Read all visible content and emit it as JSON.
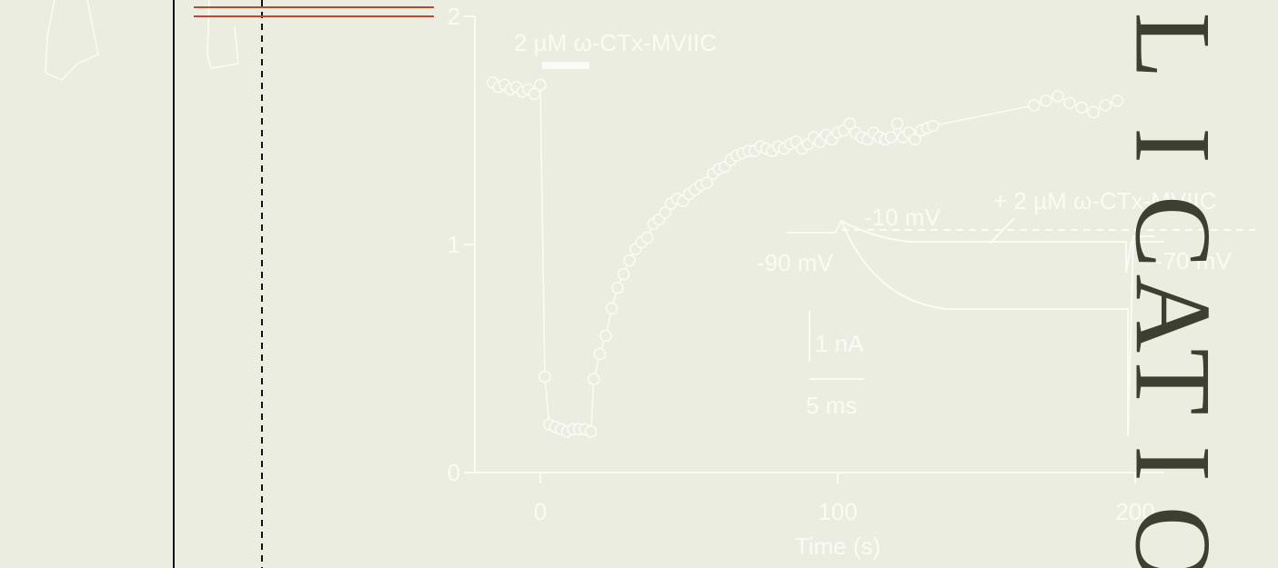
{
  "chart_data": {
    "type": "line",
    "xlabel": "Time (s)",
    "color": "#fbfbf6",
    "marker": "circle",
    "x": [
      -16,
      -14,
      -12,
      -10,
      -8,
      -6,
      -4,
      -2,
      0,
      1.5,
      3,
      5,
      7,
      9,
      11,
      13,
      15,
      17,
      18,
      20,
      22,
      24,
      26,
      28,
      30,
      32,
      34,
      36,
      38,
      40,
      42,
      44,
      46,
      48,
      50,
      52,
      54,
      56,
      58,
      60,
      62,
      64,
      66,
      68,
      70,
      72,
      74,
      76,
      78,
      80,
      82,
      84,
      86,
      88,
      90,
      92,
      94,
      96,
      98,
      100,
      102,
      104,
      106,
      108,
      110,
      112,
      114,
      116,
      118,
      120,
      122,
      124,
      126,
      128,
      130,
      132,
      166,
      170,
      174,
      178,
      182,
      186,
      190,
      194
    ],
    "values": [
      1.71,
      1.69,
      1.7,
      1.68,
      1.69,
      1.67,
      1.68,
      1.66,
      1.7,
      0.42,
      0.21,
      0.2,
      0.19,
      0.18,
      0.19,
      0.19,
      0.19,
      0.18,
      0.41,
      0.52,
      0.6,
      0.72,
      0.81,
      0.87,
      0.93,
      0.98,
      1.01,
      1.03,
      1.09,
      1.11,
      1.14,
      1.18,
      1.2,
      1.19,
      1.22,
      1.24,
      1.26,
      1.27,
      1.31,
      1.33,
      1.34,
      1.37,
      1.39,
      1.4,
      1.41,
      1.41,
      1.43,
      1.42,
      1.41,
      1.43,
      1.42,
      1.44,
      1.45,
      1.42,
      1.44,
      1.47,
      1.45,
      1.48,
      1.46,
      1.49,
      1.5,
      1.53,
      1.49,
      1.47,
      1.46,
      1.49,
      1.47,
      1.46,
      1.47,
      1.53,
      1.47,
      1.49,
      1.46,
      1.5,
      1.51,
      1.52,
      1.61,
      1.63,
      1.65,
      1.62,
      1.6,
      1.58,
      1.61,
      1.63
    ],
    "xlim": [
      -22,
      210
    ],
    "ylim": [
      0,
      2
    ],
    "xticks": [
      0,
      100,
      200
    ],
    "yticks": [
      0,
      1,
      2
    ],
    "annotations": [
      "2 µM ω-CTx-MVIIC",
      "-10 mV",
      "+ 2 µM ω-CTx-MVIIC",
      "-90 mV",
      "-70 mV",
      "1 nA",
      "5 ms"
    ]
  },
  "slide": {
    "side_letters": [
      "L",
      "I",
      "C",
      "A",
      "T",
      "I",
      "O"
    ]
  }
}
